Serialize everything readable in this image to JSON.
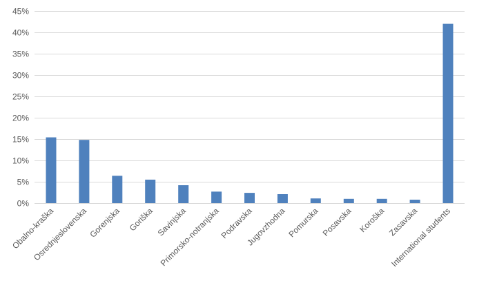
{
  "chart_data": {
    "type": "bar",
    "title": "",
    "xlabel": "",
    "ylabel": "",
    "categories": [
      "Obalno-kraška",
      "Osrednjeslovenska",
      "Gorenjska",
      "Goriška",
      "Savinjska",
      "Primorsko-notranjska",
      "Podravska",
      "Jugovzhodna",
      "Pomurska",
      "Posavska",
      "Koroška",
      "Zasavska",
      "International students"
    ],
    "values": [
      15.4,
      14.8,
      6.4,
      5.5,
      4.2,
      2.7,
      2.4,
      2.1,
      1.1,
      1.0,
      1.0,
      0.8,
      42.0
    ],
    "ylim": [
      0,
      45
    ],
    "yticks": [
      0,
      5,
      10,
      15,
      20,
      25,
      30,
      35,
      40,
      45
    ],
    "ytick_labels": [
      "0%",
      "5%",
      "10%",
      "15%",
      "20%",
      "25%",
      "30%",
      "35%",
      "40%",
      "45%"
    ],
    "grid": true,
    "bar_color": "#4f81bd"
  }
}
